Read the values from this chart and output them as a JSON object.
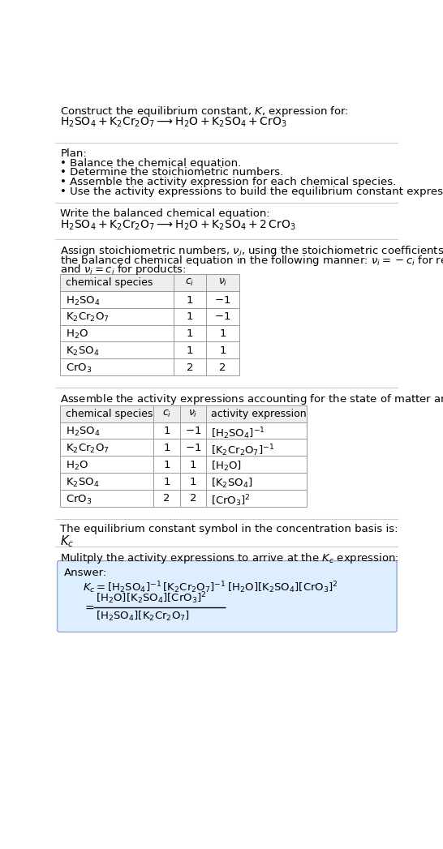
{
  "title_line1": "Construct the equilibrium constant, $K$, expression for:",
  "title_line2": "$\\mathrm{H_2SO_4 + K_2Cr_2O_7 \\longrightarrow H_2O + K_2SO_4 + CrO_3}$",
  "plan_header": "Plan:",
  "plan_items": [
    "• Balance the chemical equation.",
    "• Determine the stoichiometric numbers.",
    "• Assemble the activity expression for each chemical species.",
    "• Use the activity expressions to build the equilibrium constant expression."
  ],
  "balanced_header": "Write the balanced chemical equation:",
  "balanced_eq": "$\\mathrm{H_2SO_4 + K_2Cr_2O_7 \\longrightarrow H_2O + K_2SO_4 + 2\\,CrO_3}$",
  "stoich_line1": "Assign stoichiometric numbers, $\\nu_i$, using the stoichiometric coefficients, $c_i$, from",
  "stoich_line2": "the balanced chemical equation in the following manner: $\\nu_i = -c_i$ for reactants",
  "stoich_line3": "and $\\nu_i = c_i$ for products:",
  "table1_col_headers": [
    "chemical species",
    "$c_i$",
    "$\\nu_i$"
  ],
  "table1_rows": [
    [
      "$\\mathrm{H_2SO_4}$",
      "1",
      "$-1$"
    ],
    [
      "$\\mathrm{K_2Cr_2O_7}$",
      "1",
      "$-1$"
    ],
    [
      "$\\mathrm{H_2O}$",
      "1",
      "1"
    ],
    [
      "$\\mathrm{K_2SO_4}$",
      "1",
      "1"
    ],
    [
      "$\\mathrm{CrO_3}$",
      "2",
      "2"
    ]
  ],
  "activity_intro": "Assemble the activity expressions accounting for the state of matter and $\\nu_i$:",
  "table2_col_headers": [
    "chemical species",
    "$c_i$",
    "$\\nu_i$",
    "activity expression"
  ],
  "table2_rows": [
    [
      "$\\mathrm{H_2SO_4}$",
      "1",
      "$-1$",
      "$[\\mathrm{H_2SO_4}]^{-1}$"
    ],
    [
      "$\\mathrm{K_2Cr_2O_7}$",
      "1",
      "$-1$",
      "$[\\mathrm{K_2Cr_2O_7}]^{-1}$"
    ],
    [
      "$\\mathrm{H_2O}$",
      "1",
      "1",
      "$[\\mathrm{H_2O}]$"
    ],
    [
      "$\\mathrm{K_2SO_4}$",
      "1",
      "1",
      "$[\\mathrm{K_2SO_4}]$"
    ],
    [
      "$\\mathrm{CrO_3}$",
      "2",
      "2",
      "$[\\mathrm{CrO_3}]^2$"
    ]
  ],
  "kc_header": "The equilibrium constant symbol in the concentration basis is:",
  "kc_symbol": "$K_c$",
  "multiply_header": "Mulitply the activity expressions to arrive at the $K_c$ expression:",
  "answer_label": "Answer:",
  "answer_eq": "$K_c = [\\mathrm{H_2SO_4}]^{-1}\\,[\\mathrm{K_2Cr_2O_7}]^{-1}\\,[\\mathrm{H_2O}][\\mathrm{K_2SO_4}][\\mathrm{CrO_3}]^2$",
  "frac_num": "$[\\mathrm{H_2O}][\\mathrm{K_2SO_4}][\\mathrm{CrO_3}]^2$",
  "frac_den": "$[\\mathrm{H_2SO_4}][\\mathrm{K_2Cr_2O_7}]$",
  "bg_color": "#ffffff",
  "table_border": "#999999",
  "table_header_bg": "#eeeeee",
  "answer_bg": "#ddeeff",
  "answer_border": "#99aacc",
  "divider_color": "#cccccc",
  "text_color": "#000000"
}
